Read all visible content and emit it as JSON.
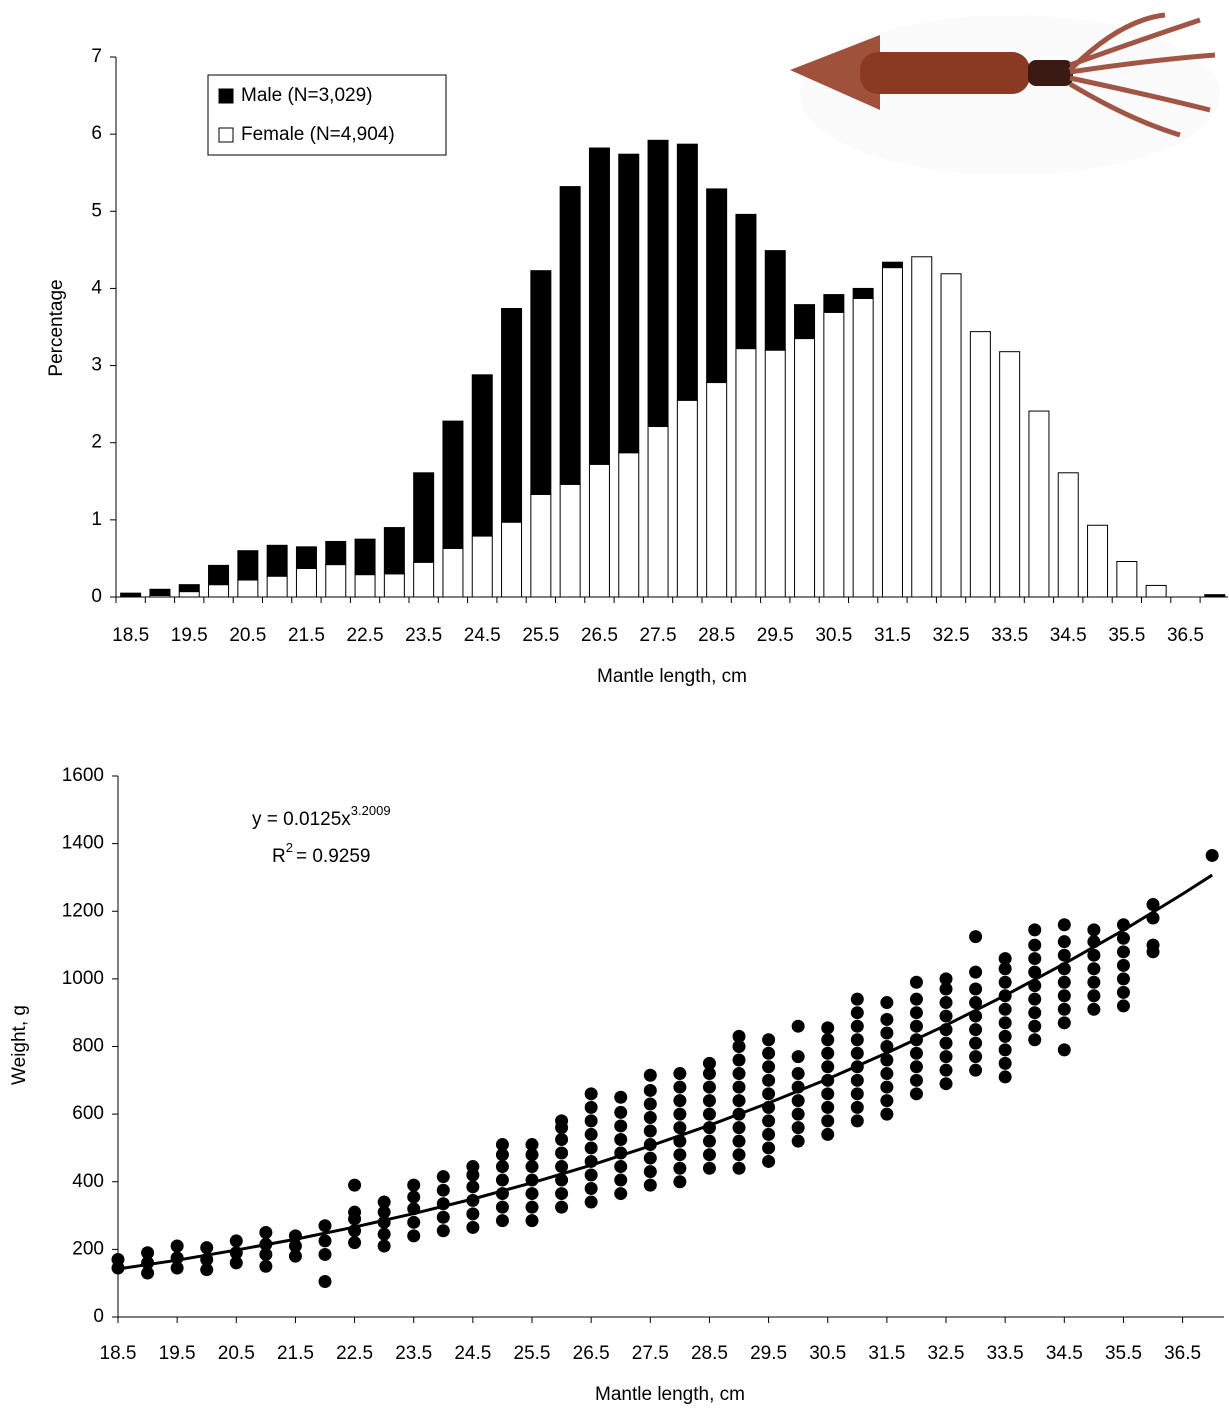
{
  "chart_data": [
    {
      "type": "bar",
      "stacked": true,
      "x_label": "Mantle length, cm",
      "y_label": "Percentage",
      "categories": [
        "18.5",
        null,
        "19.5",
        null,
        "20.5",
        null,
        "21.5",
        null,
        "22.5",
        null,
        "23.5",
        null,
        "24.5",
        null,
        "25.5",
        null,
        "26.5",
        null,
        "27.5",
        null,
        "28.5",
        null,
        "29.5",
        null,
        "30.5",
        null,
        "31.5",
        null,
        "32.5",
        null,
        "33.5",
        null,
        "34.5",
        null,
        "35.5",
        null,
        "36.5",
        null
      ],
      "series": [
        {
          "name": "Male (N=3,029)",
          "color": "#000000",
          "values": [
            0.04,
            0.08,
            0.09,
            0.25,
            0.38,
            0.4,
            0.28,
            0.3,
            0.46,
            0.6,
            1.16,
            1.65,
            2.09,
            2.77,
            2.9,
            3.86,
            4.1,
            3.87,
            3.71,
            3.32,
            2.51,
            1.74,
            1.29,
            0.44,
            0.23,
            0.13,
            0.07,
            0,
            0,
            0,
            0,
            0,
            0,
            0,
            0,
            0,
            0,
            0.03
          ]
        },
        {
          "name": "Female (N=4,904)",
          "color": "#ffffff",
          "values": [
            0.01,
            0.02,
            0.07,
            0.16,
            0.22,
            0.27,
            0.37,
            0.42,
            0.29,
            0.3,
            0.45,
            0.63,
            0.79,
            0.97,
            1.33,
            1.46,
            1.72,
            1.87,
            2.21,
            2.55,
            2.78,
            3.22,
            3.2,
            3.35,
            3.69,
            3.87,
            4.27,
            4.41,
            4.19,
            3.44,
            3.18,
            2.41,
            1.61,
            0.93,
            0.46,
            0.15,
            0,
            0
          ]
        }
      ],
      "ylim": [
        0,
        7
      ],
      "yticks": [
        0,
        1,
        2,
        3,
        4,
        5,
        6,
        7
      ],
      "legend": "top-left"
    },
    {
      "type": "scatter",
      "x_label": "Mantle length, cm",
      "y_label": "Weight, g",
      "color": "#000000",
      "equation": "y = 0.0125x",
      "equation_exponent": "3.2009",
      "r2_label": "R",
      "r2_exponent": "2",
      "r2_value": "= 0.9259",
      "xlim": [
        18.5,
        37.2
      ],
      "xticks": [
        18.5,
        19.5,
        20.5,
        21.5,
        22.5,
        23.5,
        24.5,
        25.5,
        26.5,
        27.5,
        28.5,
        29.5,
        30.5,
        31.5,
        32.5,
        33.5,
        34.5,
        35.5,
        36.5
      ],
      "ylim": [
        0,
        1600
      ],
      "yticks": [
        0,
        200,
        400,
        600,
        800,
        1000,
        1200,
        1400,
        1600
      ],
      "columns": [
        {
          "x": 18.5,
          "values": [
            145,
            170
          ]
        },
        {
          "x": 19,
          "values": [
            130,
            160,
            190
          ]
        },
        {
          "x": 19.5,
          "values": [
            145,
            175,
            210
          ]
        },
        {
          "x": 20,
          "values": [
            140,
            170,
            205
          ]
        },
        {
          "x": 20.5,
          "values": [
            160,
            190,
            225
          ]
        },
        {
          "x": 21,
          "values": [
            150,
            185,
            215,
            250
          ]
        },
        {
          "x": 21.5,
          "values": [
            180,
            210,
            240
          ]
        },
        {
          "x": 22,
          "values": [
            105,
            185,
            225,
            270
          ]
        },
        {
          "x": 22.5,
          "values": [
            220,
            255,
            290,
            310,
            390
          ]
        },
        {
          "x": 23,
          "values": [
            210,
            245,
            280,
            310,
            340
          ]
        },
        {
          "x": 23.5,
          "values": [
            240,
            280,
            320,
            355,
            390
          ]
        },
        {
          "x": 24,
          "values": [
            255,
            295,
            335,
            375,
            415
          ]
        },
        {
          "x": 24.5,
          "values": [
            265,
            305,
            345,
            385,
            420,
            445
          ]
        },
        {
          "x": 25,
          "values": [
            285,
            325,
            365,
            405,
            445,
            480,
            510
          ]
        },
        {
          "x": 25.5,
          "values": [
            285,
            325,
            365,
            405,
            445,
            480,
            510
          ]
        },
        {
          "x": 26,
          "values": [
            325,
            365,
            405,
            445,
            485,
            525,
            560,
            580
          ]
        },
        {
          "x": 26.5,
          "values": [
            340,
            380,
            420,
            460,
            500,
            540,
            580,
            620,
            660
          ]
        },
        {
          "x": 27,
          "values": [
            365,
            405,
            445,
            485,
            525,
            565,
            605,
            650
          ]
        },
        {
          "x": 27.5,
          "values": [
            390,
            430,
            470,
            510,
            550,
            590,
            630,
            670,
            715
          ]
        },
        {
          "x": 28,
          "values": [
            400,
            440,
            480,
            520,
            560,
            600,
            640,
            680,
            720
          ]
        },
        {
          "x": 28.5,
          "values": [
            440,
            480,
            520,
            560,
            600,
            640,
            680,
            720,
            750
          ]
        },
        {
          "x": 29,
          "values": [
            440,
            480,
            520,
            560,
            600,
            640,
            680,
            720,
            760,
            800,
            830
          ]
        },
        {
          "x": 29.5,
          "values": [
            460,
            500,
            540,
            580,
            620,
            660,
            700,
            740,
            780,
            820
          ]
        },
        {
          "x": 30,
          "values": [
            520,
            560,
            600,
            640,
            680,
            720,
            770,
            860
          ]
        },
        {
          "x": 30.5,
          "values": [
            540,
            580,
            620,
            660,
            700,
            740,
            780,
            820,
            855
          ]
        },
        {
          "x": 31,
          "values": [
            580,
            620,
            660,
            700,
            740,
            780,
            820,
            860,
            900,
            940
          ]
        },
        {
          "x": 31.5,
          "values": [
            600,
            640,
            680,
            720,
            760,
            800,
            840,
            880,
            930
          ]
        },
        {
          "x": 32,
          "values": [
            660,
            700,
            740,
            780,
            820,
            860,
            900,
            940,
            990
          ]
        },
        {
          "x": 32.5,
          "values": [
            690,
            730,
            770,
            810,
            850,
            890,
            930,
            970,
            1000
          ]
        },
        {
          "x": 33,
          "values": [
            730,
            770,
            810,
            850,
            890,
            930,
            970,
            1020,
            1125
          ]
        },
        {
          "x": 33.5,
          "values": [
            710,
            750,
            790,
            830,
            870,
            910,
            950,
            990,
            1030,
            1060
          ]
        },
        {
          "x": 34,
          "values": [
            820,
            860,
            900,
            940,
            980,
            1020,
            1060,
            1100,
            1145
          ]
        },
        {
          "x": 34.5,
          "values": [
            790,
            870,
            910,
            950,
            990,
            1030,
            1070,
            1110,
            1160
          ]
        },
        {
          "x": 35,
          "values": [
            910,
            950,
            990,
            1030,
            1070,
            1110,
            1145
          ]
        },
        {
          "x": 35.5,
          "values": [
            920,
            960,
            1000,
            1040,
            1080,
            1120,
            1160
          ]
        },
        {
          "x": 36,
          "values": [
            1080,
            1100,
            1180,
            1220
          ]
        },
        {
          "x": 37,
          "values": [
            1365
          ]
        }
      ],
      "fit": {
        "x": [
          18.5,
          19.5,
          20.5,
          21.5,
          22.5,
          23.5,
          24.5,
          25.5,
          26.5,
          27.5,
          28.5,
          29.5,
          30.5,
          31.5,
          32.5,
          33.5,
          34.5,
          35.5,
          36.5,
          37
        ],
        "values": [
          142,
          168,
          198,
          230,
          266,
          306,
          349,
          397,
          449,
          506,
          567,
          633,
          704,
          781,
          863,
          951,
          1045,
          1144,
          1251,
          1307
        ]
      }
    }
  ]
}
